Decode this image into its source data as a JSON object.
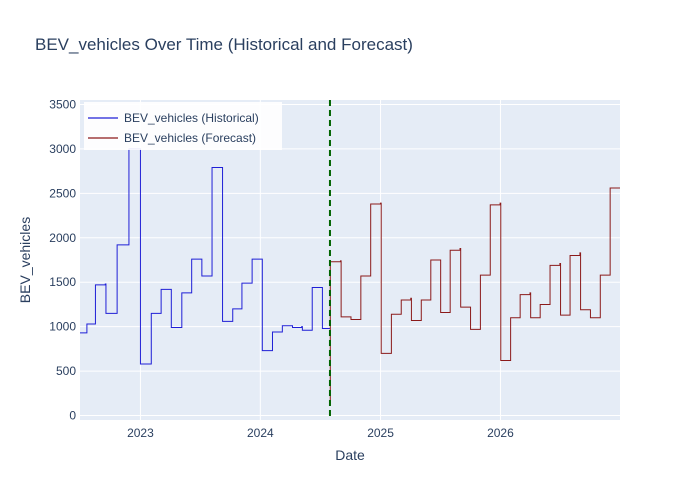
{
  "chart_data": {
    "type": "line",
    "title": "BEV_vehicles Over Time (Historical and Forecast)",
    "xlabel": "Date",
    "ylabel": "BEV_vehicles",
    "x_tick_labels": [
      "2023",
      "2024",
      "2025",
      "2026"
    ],
    "x_ticks": [
      "2023-01-01",
      "2024-01-01",
      "2025-01-01",
      "2026-01-01"
    ],
    "y_ticks": [
      0,
      500,
      1000,
      1500,
      2000,
      2500,
      3000,
      3500
    ],
    "xlim": [
      "2022-07-01",
      "2026-12-31"
    ],
    "ylim": [
      -50,
      3550
    ],
    "grid": true,
    "legend_position": "top-left",
    "forecast_start": "2024-07-31",
    "colors": {
      "historical": "#1f1fd6",
      "forecast": "#8b1a1a",
      "divider": "#006400",
      "plot_bg": "#e5ecf6",
      "grid": "#ffffff"
    },
    "series": [
      {
        "name": "BEV_vehicles (Historical)",
        "step": true,
        "points": [
          [
            "2022-07-01",
            930
          ],
          [
            "2022-07-20",
            930
          ],
          [
            "2022-07-22",
            1030
          ],
          [
            "2022-08-15",
            1030
          ],
          [
            "2022-08-17",
            1470
          ],
          [
            "2022-09-14",
            1470
          ],
          [
            "2022-09-16",
            1480
          ],
          [
            "2022-09-18",
            1150
          ],
          [
            "2022-10-20",
            1150
          ],
          [
            "2022-10-22",
            1920
          ],
          [
            "2022-11-25",
            1920
          ],
          [
            "2022-11-27",
            3000
          ],
          [
            "2022-12-30",
            3000
          ],
          [
            "2023-01-01",
            580
          ],
          [
            "2023-02-01",
            580
          ],
          [
            "2023-02-03",
            1150
          ],
          [
            "2023-03-03",
            1150
          ],
          [
            "2023-03-05",
            1420
          ],
          [
            "2023-04-03",
            1420
          ],
          [
            "2023-04-05",
            990
          ],
          [
            "2023-05-05",
            990
          ],
          [
            "2023-05-07",
            1380
          ],
          [
            "2023-06-04",
            1380
          ],
          [
            "2023-06-06",
            1760
          ],
          [
            "2023-07-05",
            1760
          ],
          [
            "2023-07-07",
            1570
          ],
          [
            "2023-08-05",
            1570
          ],
          [
            "2023-08-07",
            2790
          ],
          [
            "2023-09-06",
            2790
          ],
          [
            "2023-09-08",
            1060
          ],
          [
            "2023-10-07",
            1060
          ],
          [
            "2023-10-09",
            1200
          ],
          [
            "2023-11-04",
            1200
          ],
          [
            "2023-11-06",
            1490
          ],
          [
            "2023-12-05",
            1490
          ],
          [
            "2023-12-07",
            1760
          ],
          [
            "2024-01-05",
            1760
          ],
          [
            "2024-01-07",
            730
          ],
          [
            "2024-02-05",
            730
          ],
          [
            "2024-02-07",
            940
          ],
          [
            "2024-03-06",
            940
          ],
          [
            "2024-03-08",
            1010
          ],
          [
            "2024-04-06",
            1010
          ],
          [
            "2024-04-08",
            990
          ],
          [
            "2024-05-04",
            990
          ],
          [
            "2024-05-06",
            1000
          ],
          [
            "2024-05-08",
            960
          ],
          [
            "2024-06-05",
            960
          ],
          [
            "2024-06-07",
            1440
          ],
          [
            "2024-07-06",
            1440
          ],
          [
            "2024-07-08",
            980
          ],
          [
            "2024-07-31",
            980
          ]
        ]
      },
      {
        "name": "BEV_vehicles (Forecast)",
        "step": true,
        "points": [
          [
            "2024-07-31",
            140
          ],
          [
            "2024-08-01",
            1730
          ],
          [
            "2024-08-30",
            1730
          ],
          [
            "2024-09-01",
            1740
          ],
          [
            "2024-09-03",
            1110
          ],
          [
            "2024-10-01",
            1110
          ],
          [
            "2024-10-03",
            1080
          ],
          [
            "2024-10-31",
            1080
          ],
          [
            "2024-11-02",
            1570
          ],
          [
            "2024-11-30",
            1570
          ],
          [
            "2024-12-02",
            2380
          ],
          [
            "2024-12-30",
            2380
          ],
          [
            "2025-01-01",
            2390
          ],
          [
            "2025-01-03",
            700
          ],
          [
            "2025-02-01",
            700
          ],
          [
            "2025-02-03",
            1140
          ],
          [
            "2025-03-03",
            1140
          ],
          [
            "2025-03-05",
            1300
          ],
          [
            "2025-04-01",
            1300
          ],
          [
            "2025-04-03",
            1320
          ],
          [
            "2025-04-05",
            1070
          ],
          [
            "2025-05-03",
            1070
          ],
          [
            "2025-05-05",
            1300
          ],
          [
            "2025-06-01",
            1300
          ],
          [
            "2025-06-03",
            1750
          ],
          [
            "2025-07-01",
            1750
          ],
          [
            "2025-07-03",
            1160
          ],
          [
            "2025-07-30",
            1160
          ],
          [
            "2025-08-01",
            1860
          ],
          [
            "2025-08-29",
            1860
          ],
          [
            "2025-08-31",
            1880
          ],
          [
            "2025-09-02",
            1220
          ],
          [
            "2025-09-30",
            1220
          ],
          [
            "2025-10-02",
            970
          ],
          [
            "2025-10-30",
            970
          ],
          [
            "2025-11-01",
            1580
          ],
          [
            "2025-11-29",
            1580
          ],
          [
            "2025-12-01",
            2370
          ],
          [
            "2025-12-29",
            2370
          ],
          [
            "2025-12-31",
            2390
          ],
          [
            "2026-01-02",
            620
          ],
          [
            "2026-01-30",
            620
          ],
          [
            "2026-02-01",
            1100
          ],
          [
            "2026-02-28",
            1100
          ],
          [
            "2026-03-02",
            1360
          ],
          [
            "2026-03-30",
            1360
          ],
          [
            "2026-04-01",
            1380
          ],
          [
            "2026-04-03",
            1100
          ],
          [
            "2026-04-30",
            1100
          ],
          [
            "2026-05-02",
            1250
          ],
          [
            "2026-05-30",
            1250
          ],
          [
            "2026-06-01",
            1690
          ],
          [
            "2026-06-29",
            1690
          ],
          [
            "2026-07-01",
            1710
          ],
          [
            "2026-07-03",
            1130
          ],
          [
            "2026-07-30",
            1130
          ],
          [
            "2026-08-01",
            1800
          ],
          [
            "2026-08-29",
            1800
          ],
          [
            "2026-08-31",
            1830
          ],
          [
            "2026-09-02",
            1190
          ],
          [
            "2026-09-30",
            1190
          ],
          [
            "2026-10-02",
            1100
          ],
          [
            "2026-10-30",
            1100
          ],
          [
            "2026-11-01",
            1580
          ],
          [
            "2026-11-29",
            1580
          ],
          [
            "2026-12-01",
            2560
          ],
          [
            "2026-12-31",
            2560
          ]
        ]
      }
    ]
  }
}
